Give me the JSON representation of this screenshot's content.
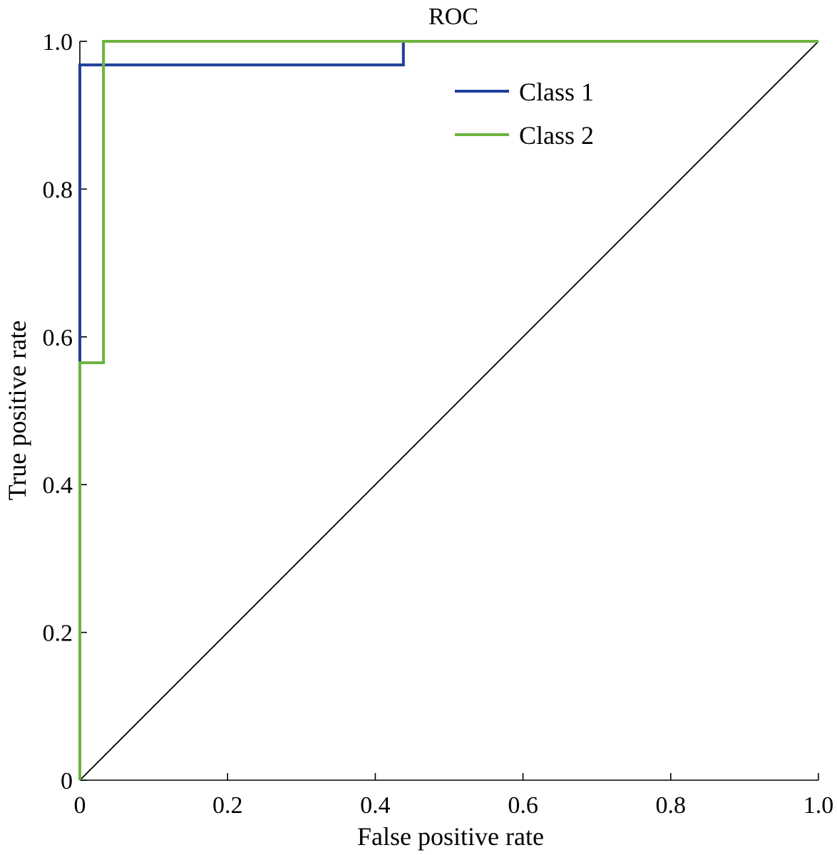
{
  "chart_data": {
    "type": "line",
    "title": "ROC",
    "xlabel": "False positive rate",
    "ylabel": "True positive rate",
    "xlim": [
      0,
      1
    ],
    "ylim": [
      0,
      1
    ],
    "xticks": [
      0,
      0.2,
      0.4,
      0.6,
      0.8,
      1.0
    ],
    "yticks": [
      0,
      0.2,
      0.4,
      0.6,
      0.8,
      1.0
    ],
    "xtick_labels": [
      "0",
      "0.2",
      "0.4",
      "0.6",
      "0.8",
      "1.0"
    ],
    "ytick_labels": [
      "0",
      "0.2",
      "0.4",
      "0.6",
      "0.8",
      "1.0"
    ],
    "grid": false,
    "legend_position": "top-right",
    "series": [
      {
        "name": "Class 1",
        "color": "#1f3f99",
        "x": [
          0,
          0,
          0,
          0.438,
          0.438,
          1.0
        ],
        "y": [
          0,
          0.565,
          0.968,
          0.968,
          1.0,
          1.0
        ]
      },
      {
        "name": "Class 2",
        "color": "#6db33f",
        "x": [
          0,
          0,
          0.032,
          0.032,
          1.0
        ],
        "y": [
          0,
          0.565,
          0.565,
          1.0,
          1.0
        ]
      }
    ],
    "reference_line": {
      "color": "#000000",
      "x": [
        0,
        1
      ],
      "y": [
        0,
        1
      ]
    }
  }
}
